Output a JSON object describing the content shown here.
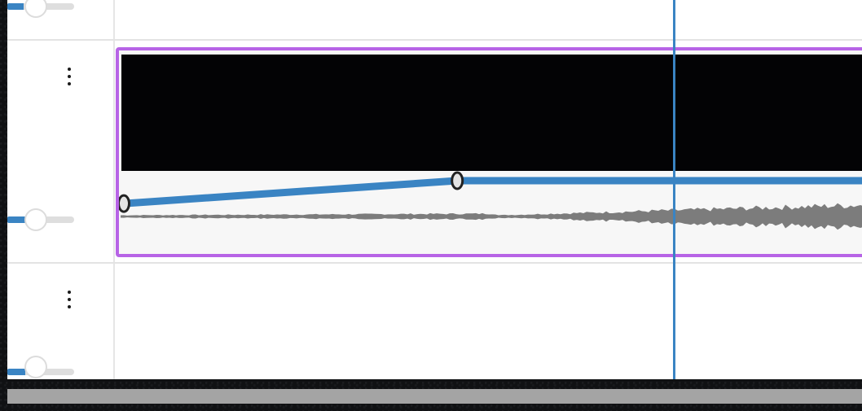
{
  "timeline": {
    "accent_color": "#3a84c3",
    "selection_color": "#b764e6",
    "tracks": [
      {
        "id": "track-top-partial",
        "menu_icon": "kebab-menu-icon",
        "volume_level": 0.12
      },
      {
        "id": "track-video-audio",
        "menu_icon": "kebab-menu-icon",
        "volume_level": 0.12,
        "clip": {
          "selected": true,
          "thumbnail_color": "#030305",
          "volume_keyframes": [
            {
              "time_fraction": 0.0,
              "level": 0.22
            },
            {
              "time_fraction": 0.44,
              "level": 1.0
            },
            {
              "time_fraction": 1.0,
              "level": 1.0
            }
          ]
        }
      },
      {
        "id": "track-empty",
        "menu_icon": "kebab-menu-icon",
        "volume_level": 0.12
      }
    ],
    "playhead_time_fraction": 0.73,
    "scrollbar": {
      "visible_fraction": 1.0
    }
  }
}
